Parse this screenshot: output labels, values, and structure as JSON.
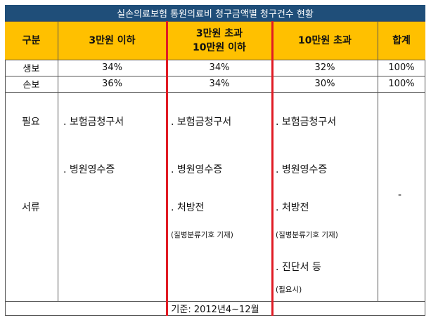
{
  "title": "실손의료보험 통원의료비 청구금액별 청구건수 현황",
  "headers": {
    "col0": "구분",
    "col1": "3만원 이하",
    "col2_line1": "3만원 초과",
    "col2_line2": "10만원 이하",
    "col3": "10만원 초과",
    "col4": "합계"
  },
  "rows": [
    {
      "label": "생보",
      "v1": "34%",
      "v2": "34%",
      "v3": "32%",
      "total": "100%"
    },
    {
      "label": "손보",
      "v1": "36%",
      "v2": "34%",
      "v3": "30%",
      "total": "100%"
    }
  ],
  "docs": {
    "label_top": "필요",
    "label_bottom": "서류",
    "col1": [
      ". 보험금청구서",
      ". 병원영수증"
    ],
    "col2": [
      ". 보험금청구서",
      ". 병원영수증",
      ". 처방전"
    ],
    "col2_note": "(질병분류기호 기재)",
    "col3": [
      ". 보험금청구서",
      ". 병원영수증",
      ". 처방전"
    ],
    "col3_note1": "(질병분류기호 기재)",
    "col3_extra": ". 진단서 등",
    "col3_note2": "(필요시)",
    "total": "-"
  },
  "footer": "기준: 2012년4~12월",
  "colors": {
    "title_bg": "#1f4e79",
    "header_bg": "#ffc000",
    "highlight": "#e01b24"
  }
}
